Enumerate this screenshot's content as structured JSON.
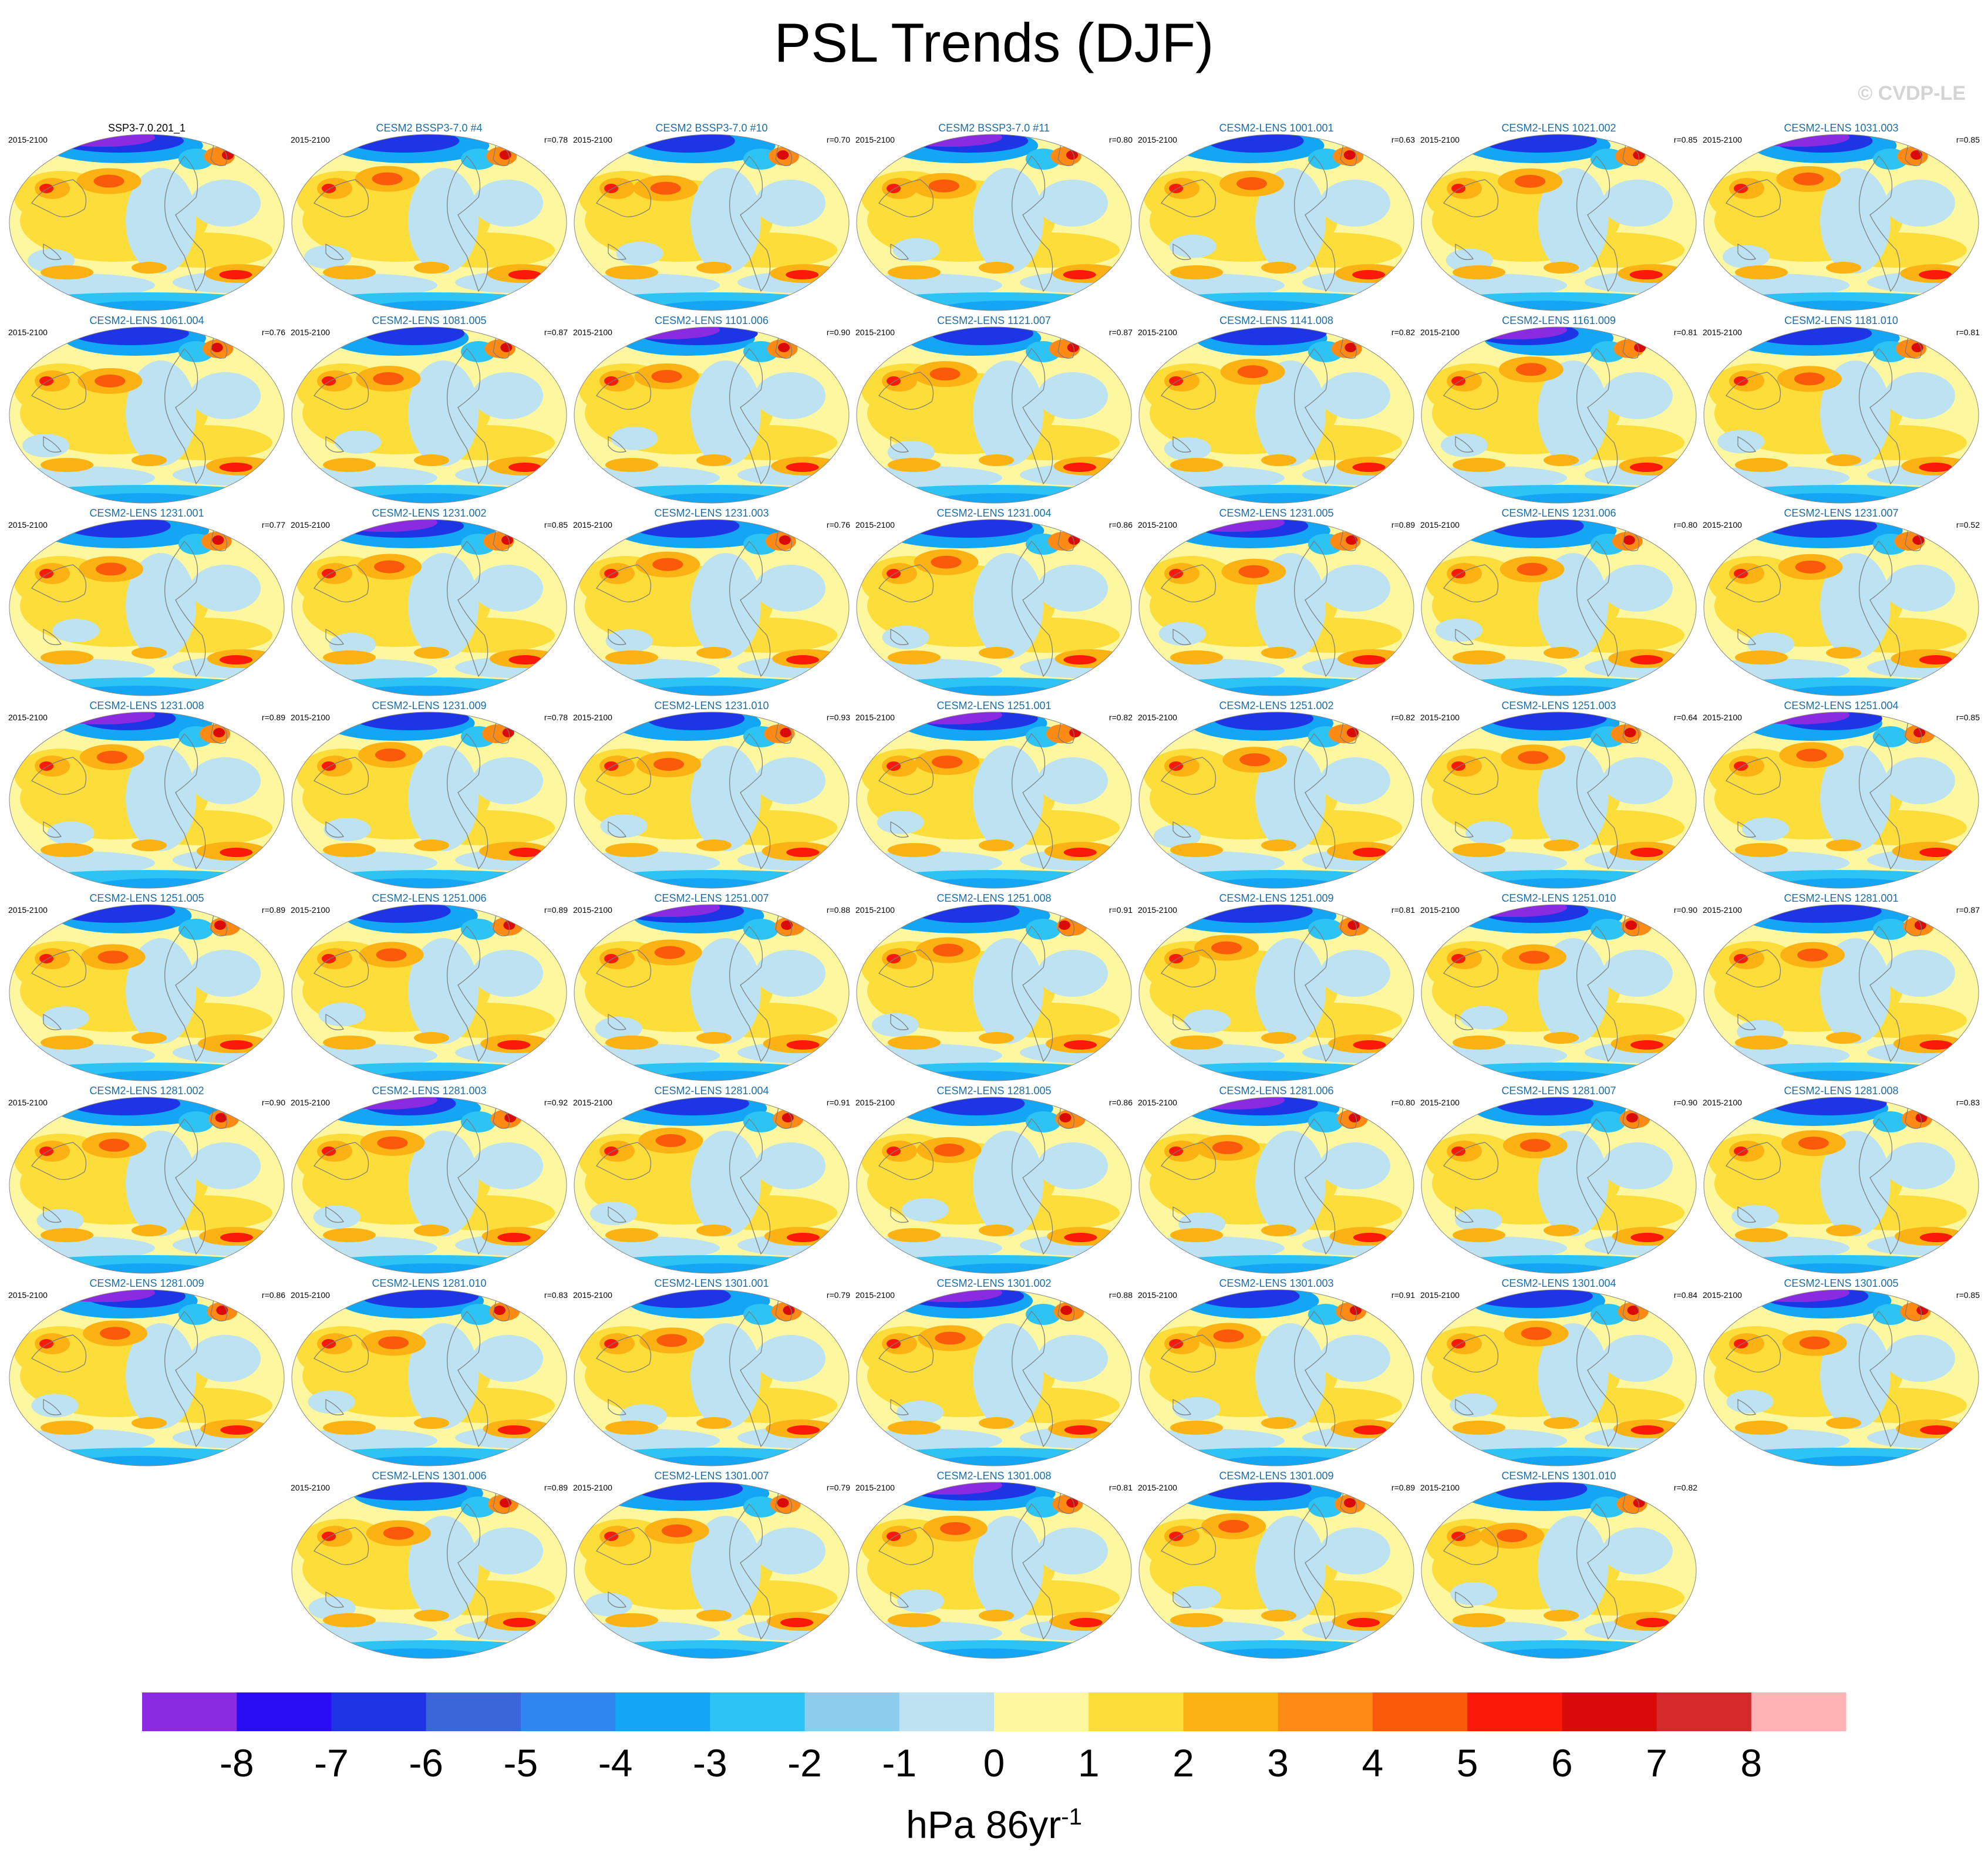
{
  "title": "PSL Trends (DJF)",
  "watermark": "© CVDP-LE",
  "period": "2015-2100",
  "units": "hPa 86yr",
  "units_sup": "-1",
  "panels": [
    {
      "title": "SSP3-7.0.201_1",
      "r": ""
    },
    {
      "title": "CESM2 BSSP3-7.0 #4",
      "r": "r=0.78"
    },
    {
      "title": "CESM2 BSSP3-7.0 #10",
      "r": "r=0.70"
    },
    {
      "title": "CESM2 BSSP3-7.0 #11",
      "r": "r=0.80"
    },
    {
      "title": "CESM2-LENS 1001.001",
      "r": "r=0.63"
    },
    {
      "title": "CESM2-LENS 1021.002",
      "r": "r=0.85"
    },
    {
      "title": "CESM2-LENS 1031.003",
      "r": "r=0.85"
    },
    {
      "title": "CESM2-LENS 1061.004",
      "r": "r=0.76"
    },
    {
      "title": "CESM2-LENS 1081.005",
      "r": "r=0.87"
    },
    {
      "title": "CESM2-LENS 1101.006",
      "r": "r=0.90"
    },
    {
      "title": "CESM2-LENS 1121.007",
      "r": "r=0.87"
    },
    {
      "title": "CESM2-LENS 1141.008",
      "r": "r=0.82"
    },
    {
      "title": "CESM2-LENS 1161.009",
      "r": "r=0.81"
    },
    {
      "title": "CESM2-LENS 1181.010",
      "r": "r=0.81"
    },
    {
      "title": "CESM2-LENS 1231.001",
      "r": "r=0.77"
    },
    {
      "title": "CESM2-LENS 1231.002",
      "r": "r=0.85"
    },
    {
      "title": "CESM2-LENS 1231.003",
      "r": "r=0.76"
    },
    {
      "title": "CESM2-LENS 1231.004",
      "r": "r=0.86"
    },
    {
      "title": "CESM2-LENS 1231.005",
      "r": "r=0.89"
    },
    {
      "title": "CESM2-LENS 1231.006",
      "r": "r=0.80"
    },
    {
      "title": "CESM2-LENS 1231.007",
      "r": "r=0.52"
    },
    {
      "title": "CESM2-LENS 1231.008",
      "r": "r=0.89"
    },
    {
      "title": "CESM2-LENS 1231.009",
      "r": "r=0.78"
    },
    {
      "title": "CESM2-LENS 1231.010",
      "r": "r=0.93"
    },
    {
      "title": "CESM2-LENS 1251.001",
      "r": "r=0.82"
    },
    {
      "title": "CESM2-LENS 1251.002",
      "r": "r=0.82"
    },
    {
      "title": "CESM2-LENS 1251.003",
      "r": "r=0.64"
    },
    {
      "title": "CESM2-LENS 1251.004",
      "r": "r=0.85"
    },
    {
      "title": "CESM2-LENS 1251.005",
      "r": "r=0.89"
    },
    {
      "title": "CESM2-LENS 1251.006",
      "r": "r=0.89"
    },
    {
      "title": "CESM2-LENS 1251.007",
      "r": "r=0.88"
    },
    {
      "title": "CESM2-LENS 1251.008",
      "r": "r=0.91"
    },
    {
      "title": "CESM2-LENS 1251.009",
      "r": "r=0.81"
    },
    {
      "title": "CESM2-LENS 1251.010",
      "r": "r=0.90"
    },
    {
      "title": "CESM2-LENS 1281.001",
      "r": "r=0.87"
    },
    {
      "title": "CESM2-LENS 1281.002",
      "r": "r=0.90"
    },
    {
      "title": "CESM2-LENS 1281.003",
      "r": "r=0.92"
    },
    {
      "title": "CESM2-LENS 1281.004",
      "r": "r=0.91"
    },
    {
      "title": "CESM2-LENS 1281.005",
      "r": "r=0.86"
    },
    {
      "title": "CESM2-LENS 1281.006",
      "r": "r=0.80"
    },
    {
      "title": "CESM2-LENS 1281.007",
      "r": "r=0.90"
    },
    {
      "title": "CESM2-LENS 1281.008",
      "r": "r=0.83"
    },
    {
      "title": "CESM2-LENS 1281.009",
      "r": "r=0.86"
    },
    {
      "title": "CESM2-LENS 1281.010",
      "r": "r=0.83"
    },
    {
      "title": "CESM2-LENS 1301.001",
      "r": "r=0.79"
    },
    {
      "title": "CESM2-LENS 1301.002",
      "r": "r=0.88"
    },
    {
      "title": "CESM2-LENS 1301.003",
      "r": "r=0.91"
    },
    {
      "title": "CESM2-LENS 1301.004",
      "r": "r=0.84"
    },
    {
      "title": "CESM2-LENS 1301.005",
      "r": "r=0.85"
    },
    {
      "title": "CESM2-LENS 1301.006",
      "r": "r=0.89"
    },
    {
      "title": "CESM2-LENS 1301.007",
      "r": "r=0.79"
    },
    {
      "title": "CESM2-LENS 1301.008",
      "r": "r=0.81"
    },
    {
      "title": "CESM2-LENS 1301.009",
      "r": "r=0.89"
    },
    {
      "title": "CESM2-LENS 1301.010",
      "r": "r=0.82"
    }
  ],
  "chart_data": {
    "type": "heatmap",
    "title": "PSL Trends (DJF)",
    "colorbar": {
      "labels": [
        "-8",
        "-7",
        "-6",
        "-5",
        "-4",
        "-3",
        "-2",
        "-1",
        "0",
        "1",
        "2",
        "3",
        "4",
        "5",
        "6",
        "7",
        "8"
      ],
      "colors": [
        "#8a2be2",
        "#2b0df5",
        "#1e35e6",
        "#3a66d9",
        "#2f86f0",
        "#12a6f5",
        "#2ec3f5",
        "#8ccdee",
        "#bde2f2",
        "#fdf7a0",
        "#fddd3a",
        "#fdb214",
        "#fc8a14",
        "#fb5a0a",
        "#fb1a0a",
        "#db0a0a",
        "#d42a2a",
        "#feb4b4"
      ]
    }
  }
}
